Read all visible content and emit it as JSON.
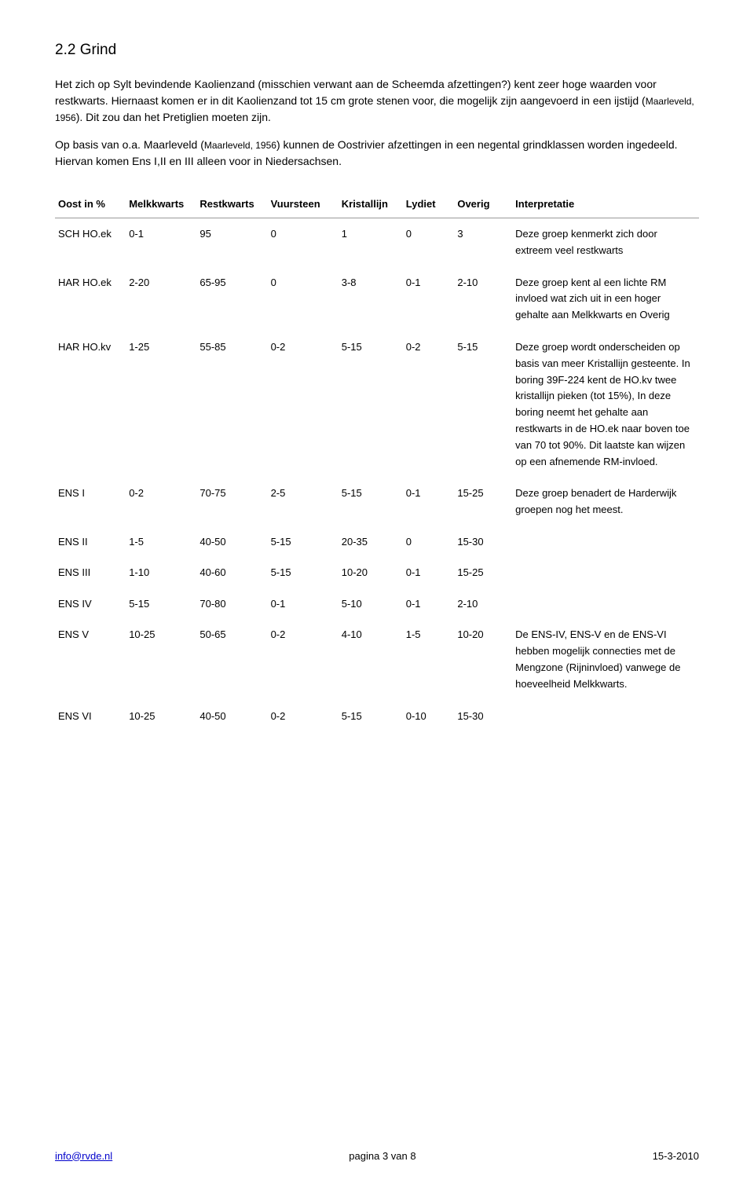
{
  "heading": "2.2  Grind",
  "paragraph": {
    "part1": "Het zich op Sylt bevindende Kaolienzand (misschien verwant aan de Scheemda afzettingen?) kent zeer hoge waarden voor restkwarts. Hiernaast komen er in dit Kaolienzand tot 15 cm grote stenen voor, die mogelijk zijn aangevoerd in een ijstijd (",
    "ref1_name": "Maarleveld, ",
    "ref1_year": "1956",
    "part2": "). Dit zou dan het Pretiglien moeten zijn.",
    "part3": "Op basis van o.a. Maarleveld (",
    "ref2_name": "Maarleveld, ",
    "ref2_year": "1956",
    "part4": ") kunnen de Oostrivier afzettingen in een negental grindklassen worden ingedeeld. Hiervan komen Ens I,II en III alleen voor in Niedersachsen."
  },
  "table": {
    "headers": {
      "c1": "Oost in %",
      "c2": "Melkkwarts",
      "c3": "Restkwarts",
      "c4": "Vuursteen",
      "c5": "Kristallijn",
      "c6": "Lydiet",
      "c7": "Overig",
      "c8": "Interpretatie"
    },
    "rows": [
      {
        "label": "SCH HO.ek",
        "v": [
          "0-1",
          "95",
          "0",
          "1",
          "0",
          "3"
        ],
        "interp": "Deze groep kenmerkt zich door extreem veel restkwarts"
      },
      {
        "label": "HAR HO.ek",
        "v": [
          "2-20",
          "65-95",
          "0",
          "3-8",
          "0-1",
          "2-10"
        ],
        "interp": "Deze groep kent al een lichte RM invloed wat zich uit in een hoger gehalte aan Melkkwarts en Overig"
      },
      {
        "label": "HAR HO.kv",
        "v": [
          "1-25",
          "55-85",
          "0-2",
          "5-15",
          "0-2",
          "5-15"
        ],
        "interp": "Deze groep wordt onderscheiden op basis van meer Kristallijn gesteente. In boring 39F-224 kent de HO.kv twee kristallijn pieken (tot 15%), In deze boring neemt het gehalte aan restkwarts in de HO.ek naar boven toe van 70 tot 90%. Dit laatste kan wijzen op een afnemende RM-invloed."
      },
      {
        "label": "ENS I",
        "v": [
          "0-2",
          "70-75",
          "2-5",
          "5-15",
          "0-1",
          "15-25"
        ],
        "interp": "Deze groep benadert de Harderwijk groepen nog het meest."
      },
      {
        "label": "ENS II",
        "v": [
          "1-5",
          "40-50",
          "5-15",
          "20-35",
          "0",
          "15-30"
        ],
        "interp": ""
      },
      {
        "label": "ENS III",
        "v": [
          "1-10",
          "40-60",
          "5-15",
          "10-20",
          "0-1",
          "15-25"
        ],
        "interp": ""
      },
      {
        "label": "ENS IV",
        "v": [
          "5-15",
          "70-80",
          "0-1",
          "5-10",
          "0-1",
          "2-10"
        ],
        "interp": ""
      },
      {
        "label": "ENS V",
        "v": [
          "10-25",
          "50-65",
          "0-2",
          "4-10",
          "1-5",
          "10-20"
        ],
        "interp": "De ENS-IV, ENS-V en de ENS-VI hebben mogelijk connecties met de Mengzone (Rijninvloed) vanwege de hoeveelheid Melkkwarts."
      },
      {
        "label": "ENS VI",
        "v": [
          "10-25",
          "40-50",
          "0-2",
          "5-15",
          "0-10",
          "15-30"
        ],
        "interp": ""
      }
    ]
  },
  "footer": {
    "left": "info@rvde.nl",
    "center": "pagina 3 van 8",
    "right": "15-3-2010"
  }
}
